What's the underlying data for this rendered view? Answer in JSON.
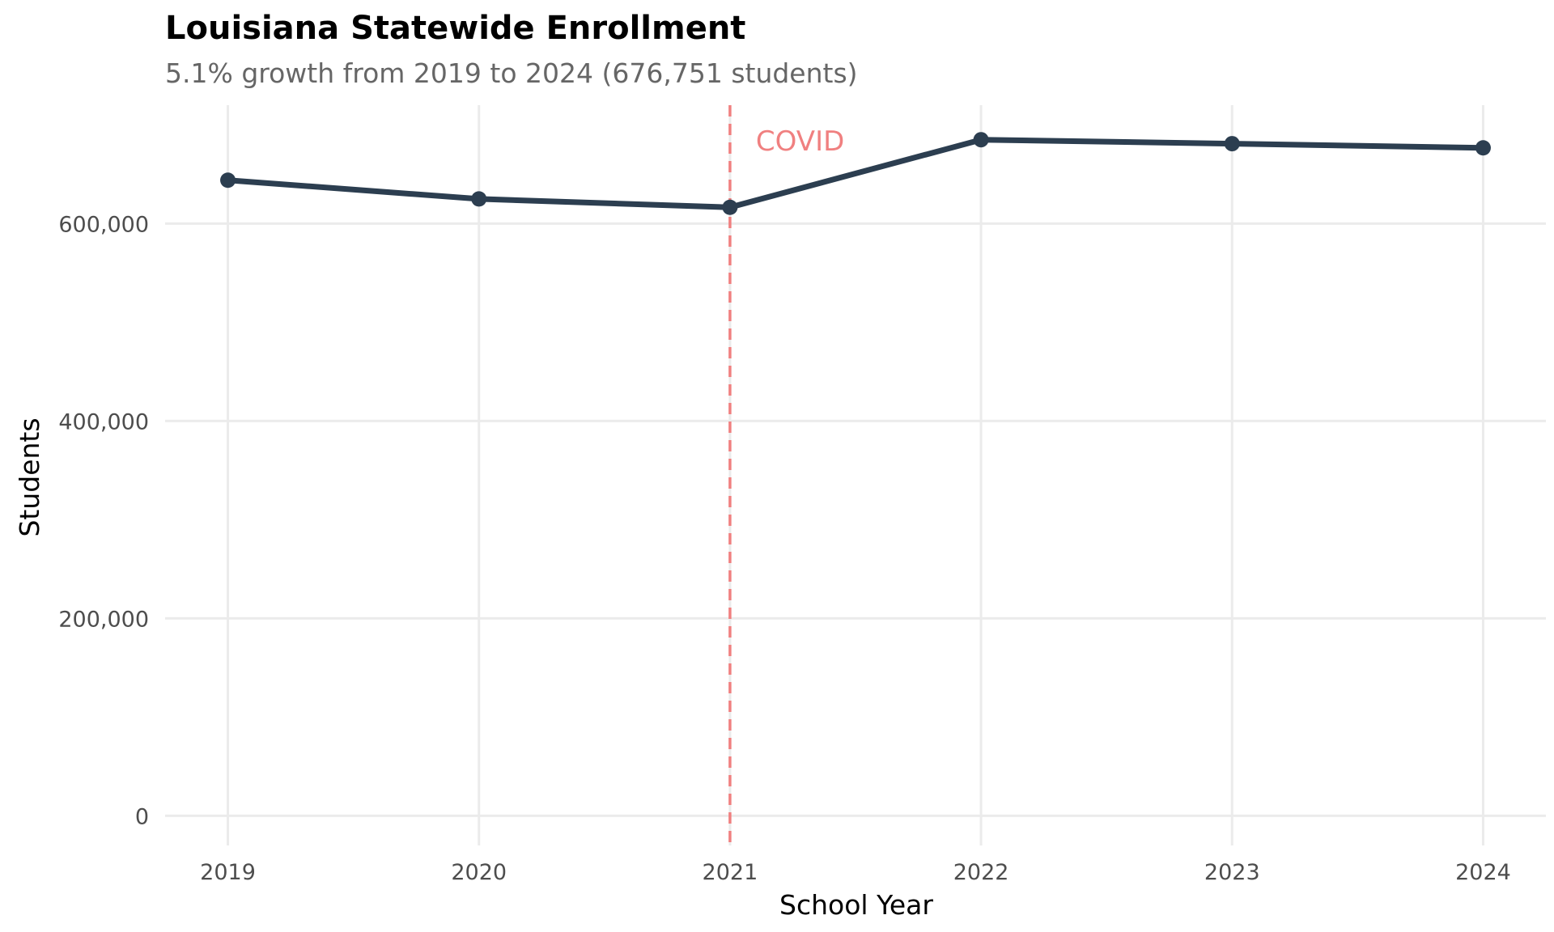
{
  "chart_data": {
    "type": "line",
    "title": "Louisiana Statewide Enrollment",
    "subtitle": "5.1% growth from 2019 to 2024 (676,751 students)",
    "xlabel": "School Year",
    "ylabel": "Students",
    "x": [
      2019,
      2020,
      2021,
      2022,
      2023,
      2024
    ],
    "x_tick_labels": [
      "2019",
      "2020",
      "2021",
      "2022",
      "2023",
      "2024"
    ],
    "y_tick_values": [
      0,
      200000,
      400000,
      600000
    ],
    "y_tick_labels": [
      "0",
      "200,000",
      "400,000",
      "600,000"
    ],
    "ylim": [
      -30000,
      720000
    ],
    "xlim": [
      2018.75,
      2024.25
    ],
    "grid": true,
    "legend": "none",
    "series": [
      {
        "values": [
          644000,
          625000,
          616500,
          685000,
          681000,
          676751
        ],
        "color": "#2c3e50"
      }
    ],
    "annotations": [
      {
        "type": "vline",
        "x": 2021,
        "label": "COVID",
        "color": "#f08080"
      }
    ]
  }
}
